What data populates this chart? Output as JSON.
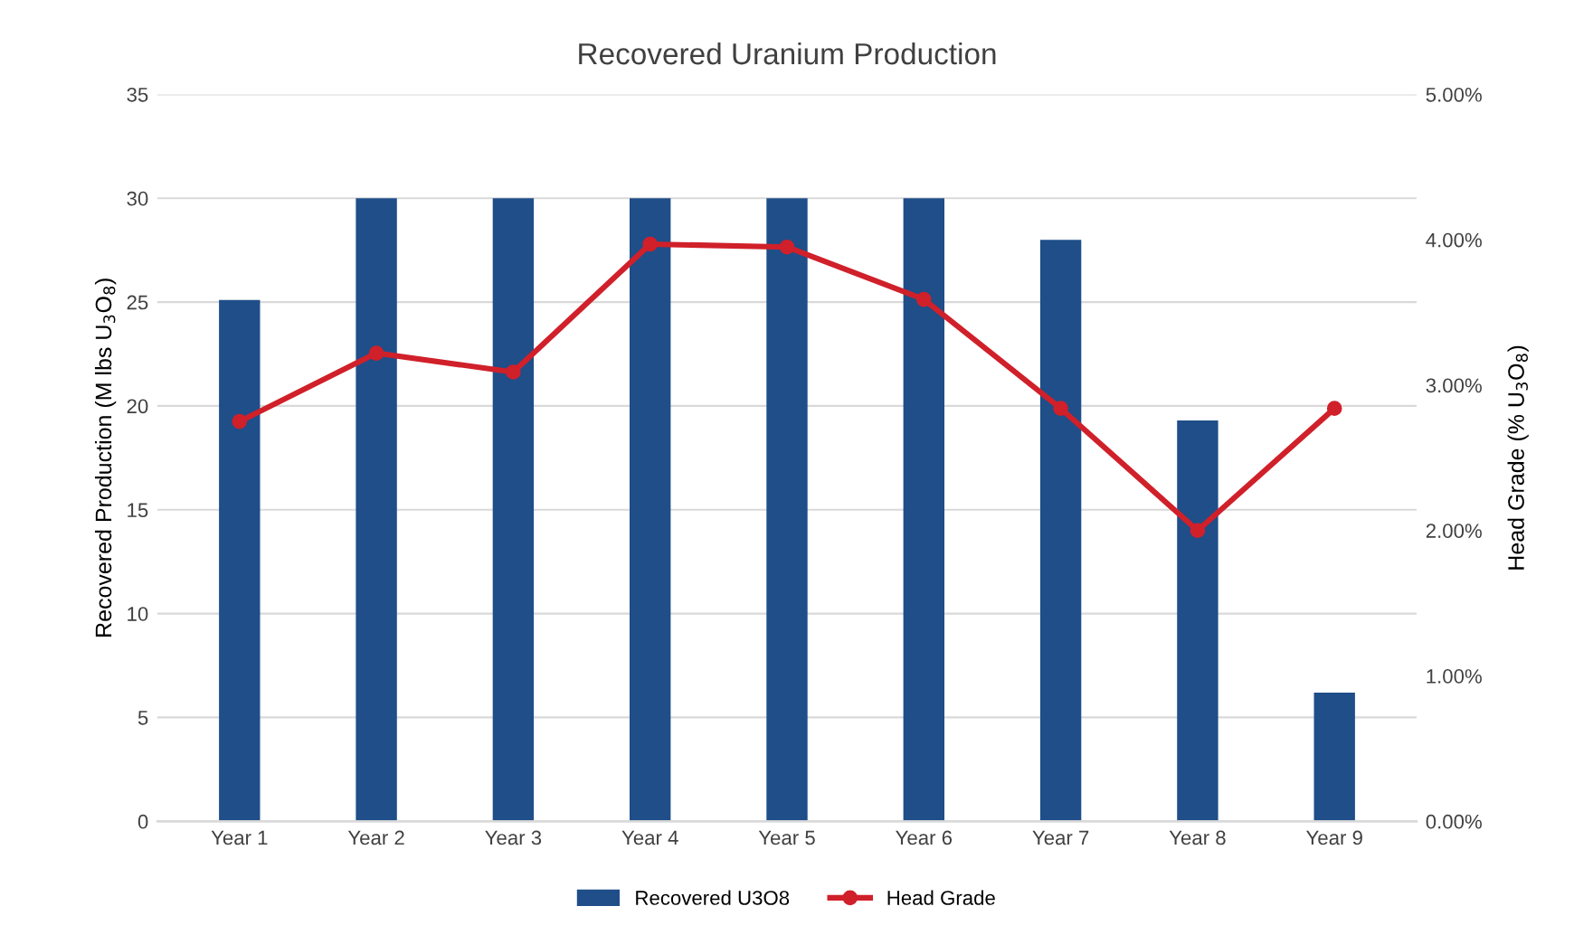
{
  "chart_data": {
    "type": "bar",
    "title": "Recovered Uranium Production",
    "categories": [
      "Year 1",
      "Year 2",
      "Year 3",
      "Year 4",
      "Year 5",
      "Year 6",
      "Year 7",
      "Year 8",
      "Year 9"
    ],
    "series": [
      {
        "name": "Recovered U3O8",
        "color": "#1f4e89",
        "values": [
          25.1,
          30,
          30,
          30,
          30,
          30,
          28,
          19.3,
          6.2
        ]
      },
      {
        "name": "Head Grade",
        "type": "line",
        "axis": "y2",
        "color": "#d0202a",
        "marker": "circle",
        "values": [
          2.75,
          3.22,
          3.09,
          3.97,
          3.95,
          3.59,
          2.84,
          2.0,
          2.84
        ]
      }
    ],
    "ylabel": "Recovered Production (M lbs U$_{3}$O$_{8}$)",
    "y2label": "Head Grade (% U$_{3}$O$_{8}$)",
    "ylim": [
      0,
      35
    ],
    "yticks": [
      0,
      5,
      10,
      15,
      20,
      25,
      30,
      35
    ],
    "y2lim": [
      0,
      5
    ],
    "y2ticks": [
      {
        "value": 0,
        "label": "0.00%"
      },
      {
        "value": 1,
        "label": "1.00%"
      },
      {
        "value": 2,
        "label": "2.00%"
      },
      {
        "value": 3,
        "label": "3.00%"
      },
      {
        "value": 4,
        "label": "4.00%"
      },
      {
        "value": 5,
        "label": "5.00%"
      }
    ],
    "grid": "y",
    "legend": "bottom"
  }
}
